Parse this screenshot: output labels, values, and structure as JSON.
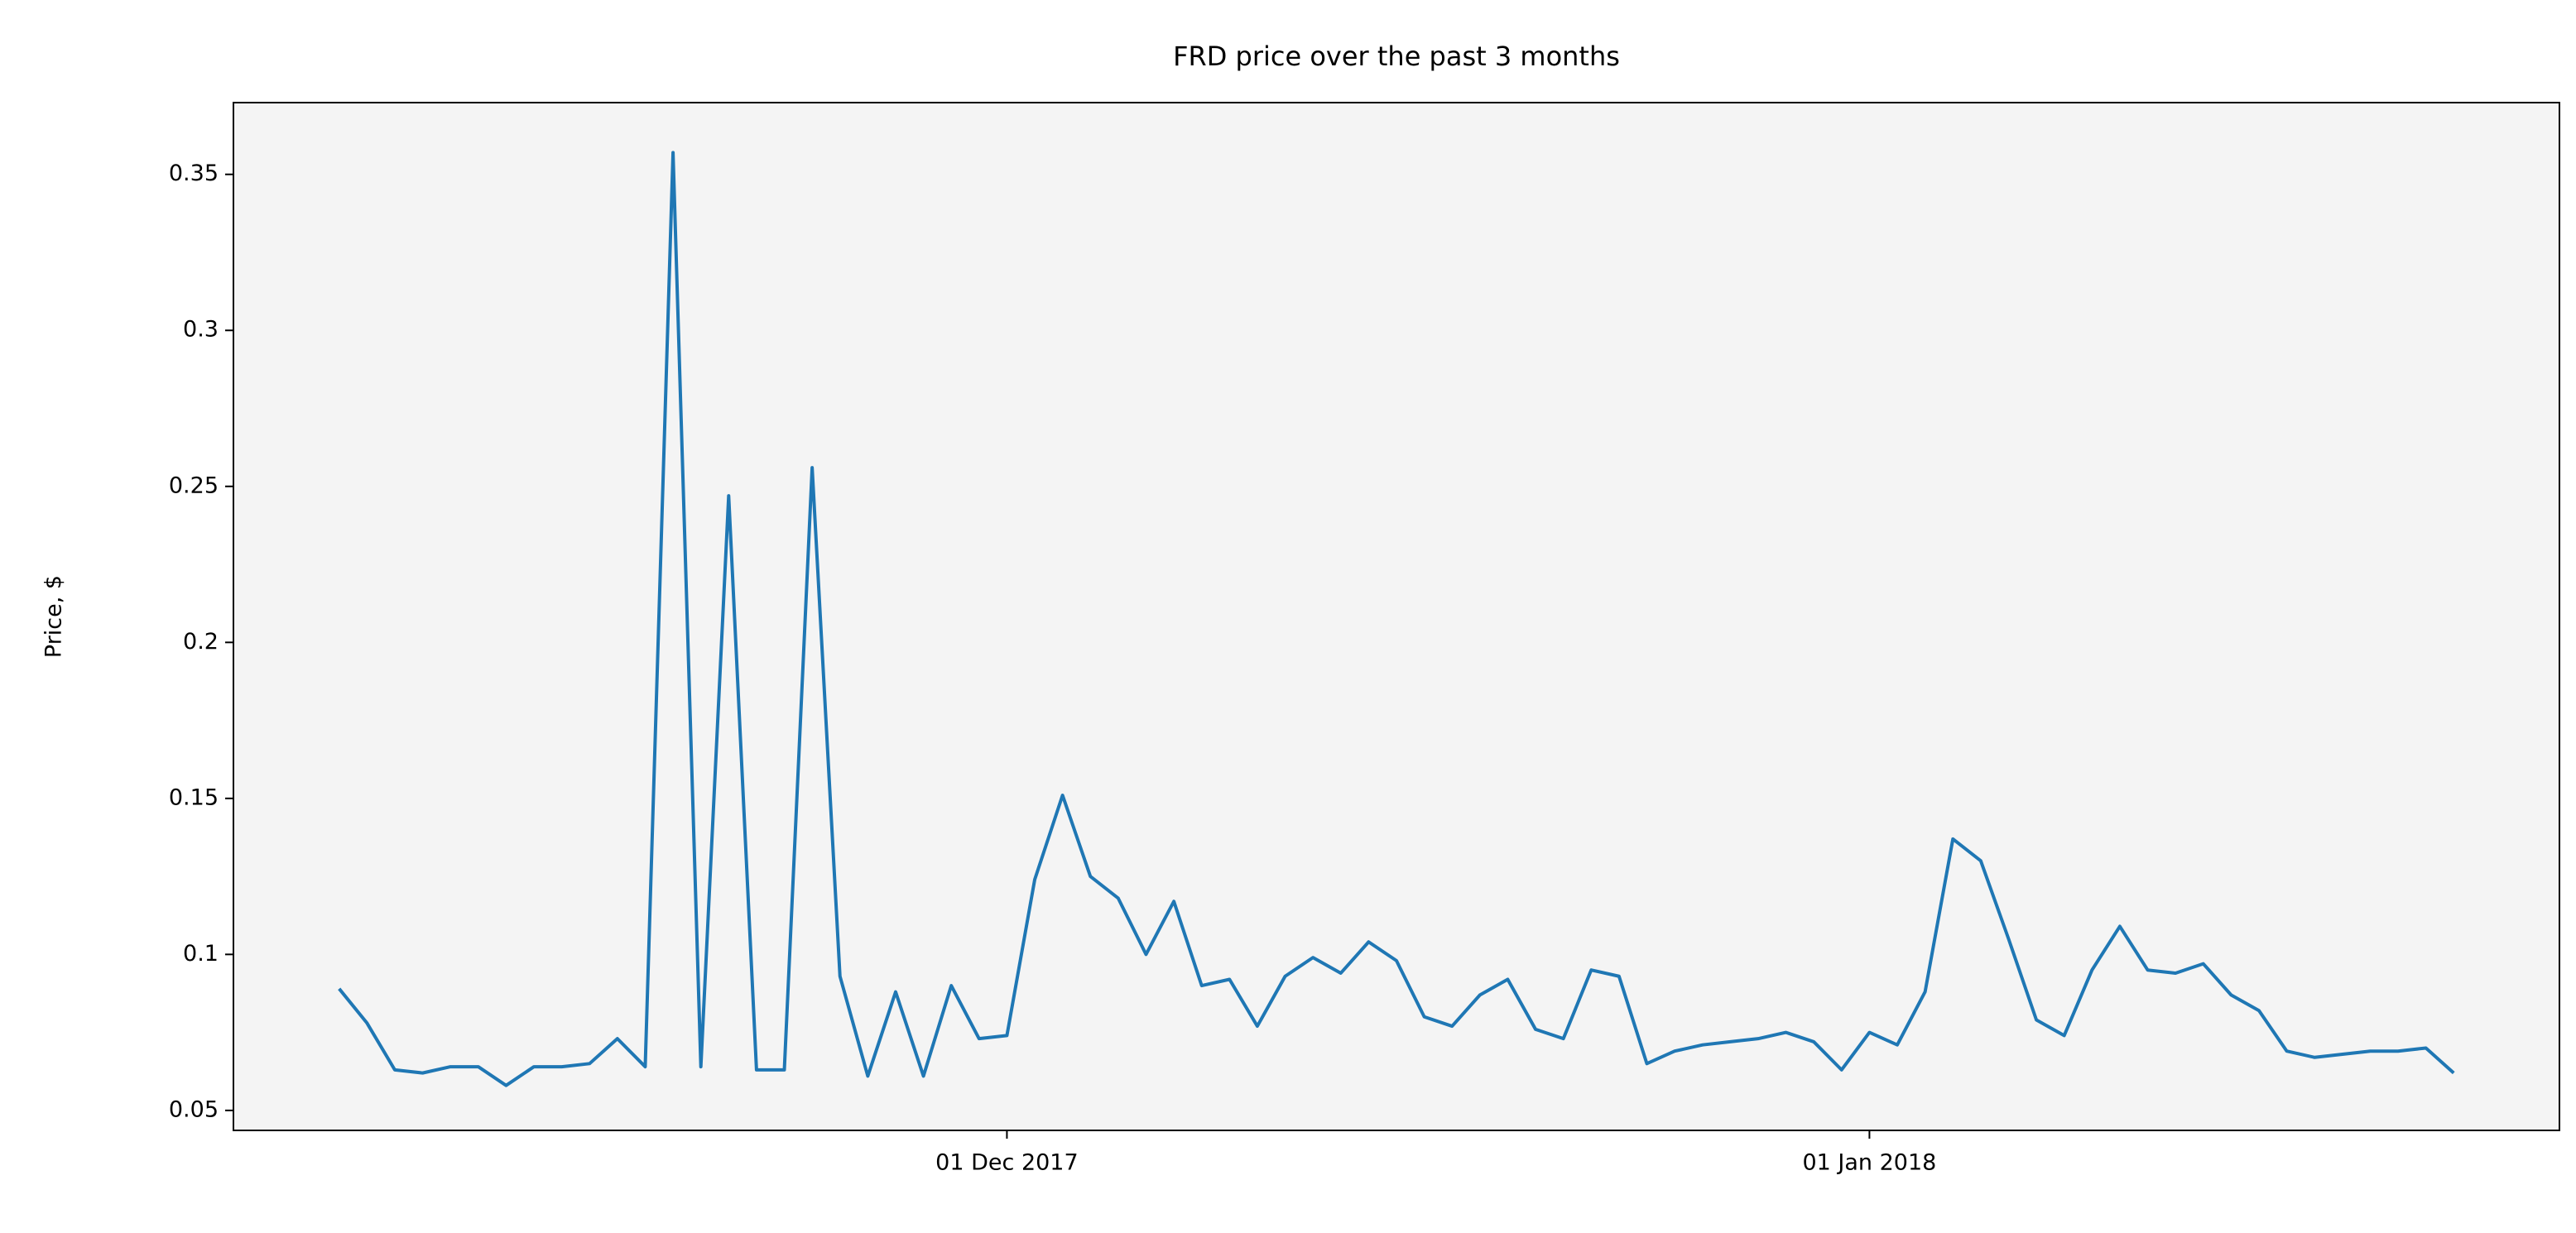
{
  "chart_data": {
    "type": "line",
    "title": "FRD price over the past 3 months",
    "y_label": "Price, $",
    "x": [
      "2017-11-07",
      "2017-11-08",
      "2017-11-09",
      "2017-11-10",
      "2017-11-11",
      "2017-11-12",
      "2017-11-13",
      "2017-11-14",
      "2017-11-15",
      "2017-11-16",
      "2017-11-17",
      "2017-11-18",
      "2017-11-19",
      "2017-11-20",
      "2017-11-21",
      "2017-11-22",
      "2017-11-23",
      "2017-11-24",
      "2017-11-25",
      "2017-11-26",
      "2017-11-27",
      "2017-11-28",
      "2017-11-29",
      "2017-11-30",
      "2017-12-01",
      "2017-12-02",
      "2017-12-03",
      "2017-12-04",
      "2017-12-05",
      "2017-12-06",
      "2017-12-07",
      "2017-12-08",
      "2017-12-09",
      "2017-12-10",
      "2017-12-11",
      "2017-12-12",
      "2017-12-13",
      "2017-12-14",
      "2017-12-15",
      "2017-12-16",
      "2017-12-17",
      "2017-12-18",
      "2017-12-19",
      "2017-12-20",
      "2017-12-21",
      "2017-12-22",
      "2017-12-23",
      "2017-12-24",
      "2017-12-25",
      "2017-12-26",
      "2017-12-27",
      "2017-12-28",
      "2017-12-29",
      "2017-12-30",
      "2017-12-31",
      "2018-01-01",
      "2018-01-02",
      "2018-01-03",
      "2018-01-04",
      "2018-01-05",
      "2018-01-06",
      "2018-01-07",
      "2018-01-08",
      "2018-01-09",
      "2018-01-10",
      "2018-01-11",
      "2018-01-12",
      "2018-01-13",
      "2018-01-14",
      "2018-01-15",
      "2018-01-16",
      "2018-01-17",
      "2018-01-18",
      "2018-01-19",
      "2018-01-20",
      "2018-01-21",
      "2018-01-22"
    ],
    "values": [
      0.089,
      0.078,
      0.063,
      0.062,
      0.064,
      0.064,
      0.058,
      0.064,
      0.064,
      0.065,
      0.073,
      0.064,
      0.357,
      0.064,
      0.247,
      0.063,
      0.063,
      0.256,
      0.093,
      0.061,
      0.088,
      0.061,
      0.09,
      0.073,
      0.074,
      0.124,
      0.151,
      0.125,
      0.118,
      0.1,
      0.117,
      0.09,
      0.092,
      0.077,
      0.093,
      0.099,
      0.094,
      0.104,
      0.098,
      0.08,
      0.077,
      0.087,
      0.092,
      0.076,
      0.073,
      0.095,
      0.093,
      0.065,
      0.069,
      0.071,
      0.072,
      0.073,
      0.075,
      0.072,
      0.063,
      0.075,
      0.071,
      0.088,
      0.137,
      0.13,
      0.105,
      0.079,
      0.074,
      0.095,
      0.109,
      0.095,
      0.094,
      0.097,
      0.087,
      0.082,
      0.069,
      0.067,
      0.068,
      0.069,
      0.069,
      0.07,
      0.062
    ],
    "color": "#1f77b4",
    "xlim": [
      "2017-11-03T04:48:00Z",
      "2018-01-25T19:12:00Z"
    ],
    "xticks": [
      {
        "value": "2017-12-01",
        "label": "01 Dec 2017"
      },
      {
        "value": "2018-01-01",
        "label": "01 Jan 2018"
      }
    ],
    "ylim": [
      0.0436,
      0.373
    ],
    "yticks": [
      0.05,
      0.1,
      0.15,
      0.2,
      0.25,
      0.3,
      0.35
    ],
    "yticks_labels_note_free": null
  }
}
